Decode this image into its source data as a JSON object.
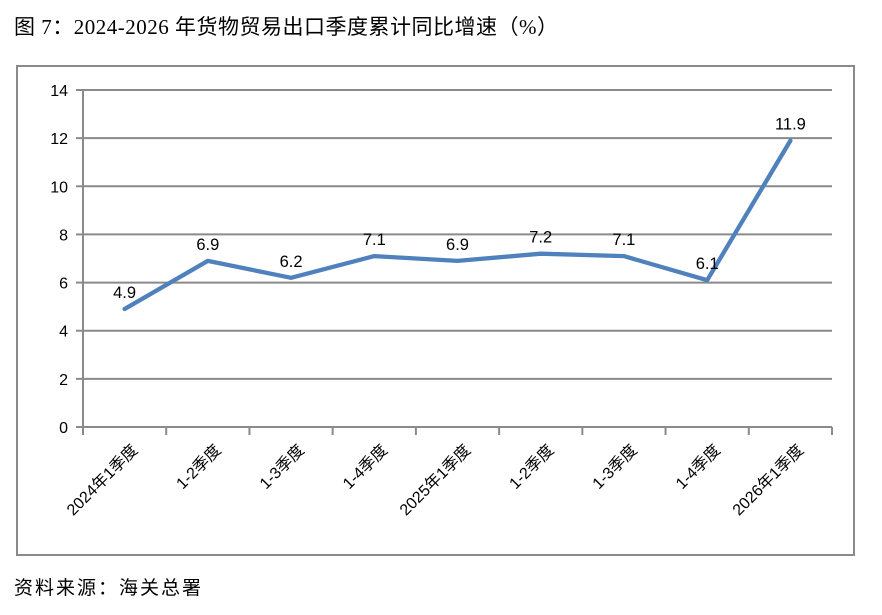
{
  "title": "图 7：2024-2026 年货物贸易出口季度累计同比增速（%）",
  "source": "资料来源：海关总署",
  "chart_data": {
    "type": "line",
    "title": "图 7：2024-2026 年货物贸易出口季度累计同比增速（%）",
    "categories": [
      "2024年1季度",
      "1-2季度",
      "1-3季度",
      "1-4季度",
      "2025年1季度",
      "1-2季度",
      "1-3季度",
      "1-4季度",
      "2026年1季度"
    ],
    "values": [
      4.9,
      6.9,
      6.2,
      7.1,
      6.9,
      7.2,
      7.1,
      6.1,
      11.9
    ],
    "data_labels": [
      "4.9",
      "6.9",
      "6.2",
      "7.1",
      "6.9",
      "7.2",
      "7.1",
      "6.1",
      "11.9"
    ],
    "xlabel": "",
    "ylabel": "",
    "ylim": [
      0,
      14
    ],
    "ytick_step": 2,
    "yticks": [
      "0",
      "2",
      "4",
      "6",
      "8",
      "10",
      "12",
      "14"
    ],
    "grid": true,
    "legend": "none",
    "x_label_rotation_deg": 45,
    "line_color": "#4F81BD",
    "grid_color": "#8A8A8A",
    "text_color": "#000000",
    "background": "#FFFFFF"
  }
}
